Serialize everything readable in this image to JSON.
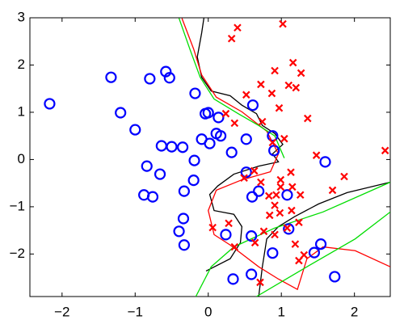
{
  "chart_data": {
    "type": "scatter",
    "xlim": [
      -2.44,
      2.49
    ],
    "ylim": [
      -2.9,
      3
    ],
    "xticks": [
      {
        "value": -2,
        "label": "−2"
      },
      {
        "value": -1,
        "label": "−1"
      },
      0,
      1,
      2
    ],
    "yticks": [
      {
        "value": -2,
        "label": "−2"
      },
      {
        "value": -1,
        "label": "−1"
      },
      0,
      1,
      2,
      3
    ],
    "series": [
      {
        "marker": "circle",
        "color": "#0000ff",
        "x": [
          -2.17,
          -1.33,
          -1.2,
          -0.8,
          -0.58,
          -0.53,
          -1.0,
          -0.64,
          -0.5,
          -0.35,
          -0.84,
          -0.66,
          -0.88,
          -0.76,
          -0.33,
          -0.2,
          -0.19,
          -0.18,
          -0.04,
          0.0,
          0.14,
          0.02,
          -0.09,
          0.11,
          0.17,
          0.32,
          0.52,
          0.61,
          0.88,
          0.9,
          0.52,
          0.6,
          0.69,
          1.08,
          -0.34,
          -0.4,
          -0.33,
          0.24,
          0.59,
          0.88,
          1.1,
          1.45,
          1.54,
          1.6,
          1.73,
          0.34,
          0.59
        ],
        "values": [
          1.18,
          1.74,
          0.99,
          1.71,
          1.86,
          1.73,
          0.63,
          0.29,
          0.27,
          0.26,
          -0.14,
          -0.31,
          -0.75,
          -0.79,
          -0.67,
          -0.44,
          -0.02,
          1.4,
          0.97,
          0.99,
          0.89,
          0.34,
          0.43,
          0.55,
          0.5,
          0.15,
          0.43,
          1.15,
          0.5,
          0.19,
          -0.27,
          -0.79,
          -0.67,
          -0.75,
          -1.25,
          -1.52,
          -1.81,
          -1.59,
          -1.62,
          -1.98,
          -1.47,
          -1.97,
          -1.79,
          -0.05,
          -2.48,
          -2.53,
          -2.43
        ]
      },
      {
        "marker": "cross",
        "color": "#ff0000",
        "x": [
          0.4,
          0.32,
          1.02,
          1.16,
          1.27,
          0.91,
          0.72,
          1.1,
          0.87,
          1.2,
          0.52,
          0.97,
          1.36,
          0.74,
          0.24,
          0.36,
          1.04,
          0.88,
          1.48,
          2.42,
          1.86,
          1.7,
          1.13,
          0.99,
          0.99,
          1.15,
          1.26,
          0.93,
          0.83,
          0.49,
          0.72,
          0.63,
          0.91,
          0.98,
          1.14,
          0.84,
          1.24,
          1.08,
          0.76,
          0.28,
          0.06,
          0.36,
          1.19,
          1.24,
          1.31,
          0.71,
          0.91,
          0.64
        ],
        "values": [
          2.79,
          2.56,
          2.87,
          2.05,
          1.83,
          1.88,
          1.59,
          1.57,
          1.4,
          1.52,
          1.37,
          1.09,
          0.87,
          0.8,
          0.97,
          0.77,
          0.44,
          0.36,
          0.09,
          0.19,
          -0.36,
          -0.65,
          -0.27,
          -0.43,
          -0.58,
          -0.58,
          -0.75,
          -0.75,
          -0.77,
          -0.39,
          -0.48,
          -0.24,
          -0.97,
          -1.13,
          -1.08,
          -1.18,
          -1.33,
          -1.45,
          -1.52,
          -1.35,
          -1.44,
          -1.85,
          -1.79,
          -2.14,
          -2.02,
          -2.6,
          -1.59,
          -1.76
        ]
      },
      {
        "marker": "line",
        "color": "#000000",
        "x": [
          -0.06,
          -0.09,
          -0.15,
          -0.09,
          0.04,
          0.3,
          0.46,
          0.66,
          0.74,
          0.91,
          1.02,
          0.88,
          0.96,
          0.69,
          0.35,
          0.13,
          0.02,
          0.08,
          0.35,
          0.46,
          0.44,
          0.3,
          -0.03,
          null,
          0.69,
          0.74,
          0.8,
          0.96,
          1.18,
          1.51,
          1.9,
          2.49
        ],
        "values": [
          2.99,
          2.68,
          2.17,
          1.74,
          1.45,
          1.35,
          1.15,
          0.97,
          0.72,
          0.55,
          0.32,
          0.12,
          -0.05,
          -0.14,
          -0.31,
          -0.56,
          -0.74,
          -1.08,
          -1.16,
          -1.42,
          -1.76,
          -2.1,
          -2.36,
          null,
          -2.9,
          -2.27,
          -1.68,
          -1.42,
          -1.21,
          -0.94,
          -0.7,
          -0.48
        ]
      },
      {
        "marker": "line",
        "color": "#ff0000",
        "x": [
          -0.36,
          -0.2,
          -0.09,
          0.11,
          0.46,
          0.8,
          0.96,
          0.85,
          0.46,
          0.11,
          0.0,
          0.08,
          0.3,
          0.69,
          0.96,
          1.22,
          1.35,
          1.57,
          2.01,
          2.49
        ],
        "values": [
          2.99,
          2.34,
          1.79,
          1.32,
          1.01,
          0.6,
          0.12,
          -0.26,
          -0.43,
          -0.65,
          -1.08,
          -1.59,
          -1.81,
          -2.27,
          -2.53,
          -2.75,
          -2.1,
          -1.85,
          -1.93,
          -2.27
        ]
      },
      {
        "marker": "line",
        "color": "#00dd00",
        "x": [
          -0.4,
          -0.25,
          -0.11,
          0.08,
          0.41,
          0.69,
          0.91,
          1.04,
          null,
          -0.17,
          0.04,
          0.35,
          0.91,
          1.57,
          2.49,
          null,
          0.66,
          1.35,
          2.01,
          2.49
        ],
        "values": [
          2.99,
          2.33,
          1.74,
          1.28,
          0.97,
          0.72,
          0.5,
          0.03,
          null,
          -2.9,
          -2.27,
          -1.85,
          -1.45,
          -1.11,
          -0.48,
          null,
          -2.9,
          -2.27,
          -1.68,
          -1.11
        ]
      }
    ]
  }
}
